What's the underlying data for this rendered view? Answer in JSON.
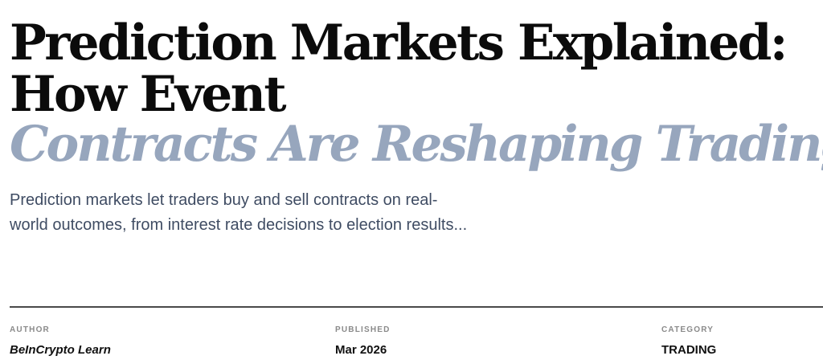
{
  "article": {
    "headline_line1": "Prediction Markets Explained:",
    "headline_line2": "How Event",
    "headline_accent": "Contracts Are Reshaping Trading",
    "dek_line1": "Prediction markets let traders buy and sell contracts on real-",
    "dek_line2": "world outcomes, from interest rate decisions to election results..."
  },
  "meta": {
    "author_label": "AUTHOR",
    "author_value": "BeInCrypto Learn",
    "published_label": "PUBLISHED",
    "published_value": "Mar 2026",
    "category_label": "CATEGORY",
    "category_value": "TRADING"
  },
  "colors": {
    "headline": "#0b0b0b",
    "accent": "#97a6bd",
    "dek": "#3f4c63",
    "rule": "#4a4a4a"
  }
}
